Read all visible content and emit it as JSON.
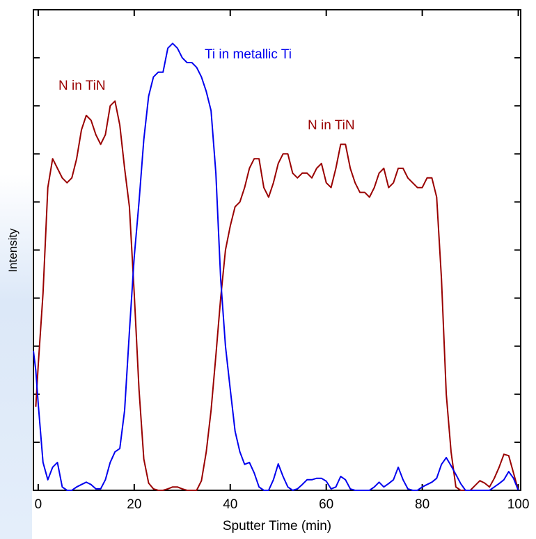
{
  "chart_data": {
    "type": "line",
    "x_label": "Sputter Time (min)",
    "y_label": "Intensity",
    "xlim": [
      -1,
      100.5
    ],
    "ylim": [
      0,
      10
    ],
    "xticks": [
      0,
      20,
      40,
      60,
      80,
      100
    ],
    "yticks": [
      1,
      2,
      3,
      4,
      5,
      6,
      7,
      8,
      9
    ],
    "ytick_labels": false,
    "series": [
      {
        "name": "N in TiN",
        "color": "#990000",
        "x": [
          -0.5,
          0,
          1,
          2,
          3,
          4,
          5,
          6,
          7,
          8,
          9,
          10,
          11,
          12,
          13,
          14,
          15,
          16,
          17,
          18,
          19,
          20,
          21,
          22,
          23,
          24,
          25,
          26,
          27,
          28,
          29,
          30,
          31,
          32,
          33,
          34,
          35,
          36,
          37,
          38,
          39,
          40,
          41,
          42,
          43,
          44,
          45,
          46,
          47,
          48,
          49,
          50,
          51,
          52,
          53,
          54,
          55,
          56,
          57,
          58,
          59,
          60,
          61,
          62,
          63,
          64,
          65,
          66,
          67,
          68,
          69,
          70,
          71,
          72,
          73,
          74,
          75,
          76,
          77,
          78,
          79,
          80,
          81,
          82,
          83,
          84,
          85,
          86,
          87,
          88,
          89,
          90,
          91,
          92,
          93,
          94,
          95,
          96,
          97,
          98,
          99,
          100
        ],
        "values": [
          1.74,
          2.6,
          4.1,
          6.3,
          6.9,
          6.7,
          6.5,
          6.4,
          6.5,
          6.9,
          7.5,
          7.8,
          7.7,
          7.4,
          7.2,
          7.4,
          8.0,
          8.1,
          7.6,
          6.7,
          5.9,
          4.1,
          2.1,
          0.65,
          0.15,
          0.03,
          0,
          0,
          0.03,
          0.07,
          0.07,
          0.03,
          0,
          0,
          0,
          0.2,
          0.8,
          1.66,
          2.8,
          4.0,
          5.0,
          5.5,
          5.9,
          6.0,
          6.3,
          6.7,
          6.9,
          6.9,
          6.3,
          6.1,
          6.4,
          6.8,
          7.0,
          7.0,
          6.6,
          6.5,
          6.6,
          6.6,
          6.5,
          6.7,
          6.8,
          6.4,
          6.3,
          6.7,
          7.2,
          7.2,
          6.7,
          6.4,
          6.2,
          6.2,
          6.1,
          6.3,
          6.6,
          6.7,
          6.3,
          6.4,
          6.7,
          6.7,
          6.5,
          6.4,
          6.3,
          6.3,
          6.5,
          6.5,
          6.1,
          4.4,
          2.0,
          0.8,
          0.07,
          0,
          0,
          0,
          0.1,
          0.2,
          0.15,
          0.07,
          0.25,
          0.48,
          0.75,
          0.72,
          0.36,
          0
        ]
      },
      {
        "name": "Ti in metallic Ti",
        "color": "#0000ee",
        "x": [
          -1,
          -0.5,
          0,
          1,
          2,
          3,
          4,
          5,
          6,
          7,
          8,
          9,
          10,
          11,
          12,
          13,
          14,
          15,
          16,
          17,
          18,
          19,
          20,
          21,
          22,
          23,
          24,
          25,
          26,
          27,
          28,
          29,
          30,
          31,
          32,
          33,
          34,
          35,
          36,
          37,
          38,
          39,
          40,
          41,
          42,
          43,
          44,
          45,
          46,
          47,
          48,
          49,
          50,
          51,
          52,
          53,
          54,
          55,
          56,
          57,
          58,
          59,
          60,
          61,
          62,
          63,
          64,
          65,
          66,
          67,
          68,
          69,
          70,
          71,
          72,
          73,
          74,
          75,
          76,
          77,
          78,
          79,
          80,
          81,
          82,
          83,
          84,
          85,
          86,
          87,
          88,
          89,
          90,
          91,
          92,
          93,
          94,
          95,
          96,
          97,
          98,
          99,
          100
        ],
        "values": [
          2.9,
          2.5,
          1.8,
          0.58,
          0.22,
          0.48,
          0.58,
          0.07,
          0,
          0,
          0.07,
          0.12,
          0.17,
          0.12,
          0.03,
          0.03,
          0.22,
          0.58,
          0.8,
          0.87,
          1.66,
          3.3,
          4.85,
          6.0,
          7.3,
          8.2,
          8.6,
          8.7,
          8.7,
          9.2,
          9.3,
          9.2,
          9.0,
          8.9,
          8.9,
          8.8,
          8.6,
          8.3,
          7.9,
          6.6,
          4.4,
          3.0,
          2.1,
          1.23,
          0.8,
          0.54,
          0.58,
          0.36,
          0.07,
          0,
          0,
          0.22,
          0.55,
          0.29,
          0.07,
          0,
          0.03,
          0.12,
          0.22,
          0.22,
          0.25,
          0.25,
          0.19,
          0.03,
          0.07,
          0.29,
          0.22,
          0.03,
          0,
          0,
          0,
          0,
          0.07,
          0.17,
          0.07,
          0.14,
          0.22,
          0.48,
          0.22,
          0.03,
          0,
          0,
          0.07,
          0.12,
          0.17,
          0.25,
          0.54,
          0.68,
          0.51,
          0.33,
          0.14,
          0,
          0,
          0,
          0,
          0,
          0,
          0.07,
          0.14,
          0.22,
          0.39,
          0.25,
          0
        ]
      }
    ],
    "annotations": [
      {
        "text": "N in TiN",
        "series": 0
      },
      {
        "text": "Ti in metallic Ti",
        "series": 1
      },
      {
        "text": "N in TiN",
        "series": 0
      }
    ]
  }
}
